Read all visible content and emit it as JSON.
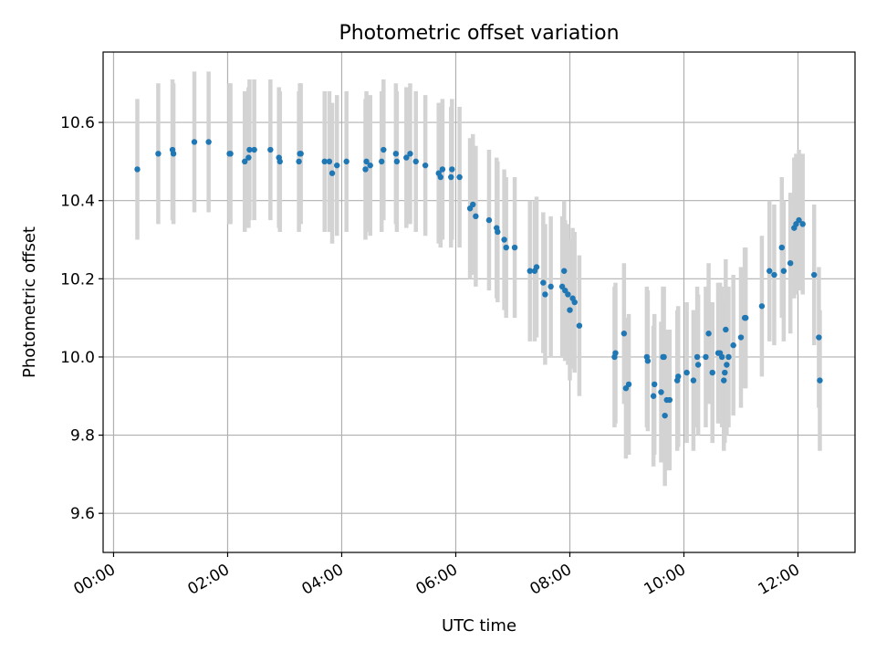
{
  "chart_data": {
    "type": "scatter",
    "title": "Photometric offset variation",
    "xlabel": "UTC time",
    "ylabel": "Photometric offset",
    "x_unit": "UTC hours",
    "xlim": [
      "-00:11",
      "13:00"
    ],
    "ylim": [
      9.5,
      10.78
    ],
    "xticks": [
      "00:00",
      "02:00",
      "04:00",
      "06:00",
      "08:00",
      "10:00",
      "12:00"
    ],
    "yticks": [
      "9.6",
      "9.8",
      "10.0",
      "10.2",
      "10.4",
      "10.6"
    ],
    "grid": true,
    "marker_color": "#1f77b4",
    "errorbar_color": "#d3d3d3",
    "error_half_width": 0.18,
    "points": [
      [
        "00:25",
        10.48
      ],
      [
        "00:47",
        10.52
      ],
      [
        "01:02",
        10.53
      ],
      [
        "01:03",
        10.52
      ],
      [
        "01:25",
        10.55
      ],
      [
        "01:40",
        10.55
      ],
      [
        "02:02",
        10.52
      ],
      [
        "02:03",
        10.52
      ],
      [
        "02:18",
        10.5
      ],
      [
        "02:22",
        10.51
      ],
      [
        "02:23",
        10.53
      ],
      [
        "02:28",
        10.53
      ],
      [
        "02:45",
        10.53
      ],
      [
        "02:54",
        10.51
      ],
      [
        "02:55",
        10.5
      ],
      [
        "03:15",
        10.5
      ],
      [
        "03:16",
        10.52
      ],
      [
        "03:17",
        10.52
      ],
      [
        "03:42",
        10.5
      ],
      [
        "03:47",
        10.5
      ],
      [
        "03:50",
        10.47
      ],
      [
        "03:55",
        10.49
      ],
      [
        "04:05",
        10.5
      ],
      [
        "04:25",
        10.48
      ],
      [
        "04:26",
        10.5
      ],
      [
        "04:30",
        10.49
      ],
      [
        "04:42",
        10.5
      ],
      [
        "04:44",
        10.53
      ],
      [
        "04:57",
        10.52
      ],
      [
        "04:58",
        10.5
      ],
      [
        "05:08",
        10.51
      ],
      [
        "05:12",
        10.52
      ],
      [
        "05:18",
        10.5
      ],
      [
        "05:28",
        10.49
      ],
      [
        "05:42",
        10.47
      ],
      [
        "05:44",
        10.46
      ],
      [
        "05:46",
        10.48
      ],
      [
        "05:55",
        10.46
      ],
      [
        "05:56",
        10.48
      ],
      [
        "06:04",
        10.46
      ],
      [
        "06:15",
        10.38
      ],
      [
        "06:18",
        10.39
      ],
      [
        "06:21",
        10.36
      ],
      [
        "06:35",
        10.35
      ],
      [
        "06:43",
        10.33
      ],
      [
        "06:44",
        10.32
      ],
      [
        "06:51",
        10.3
      ],
      [
        "06:53",
        10.28
      ],
      [
        "07:02",
        10.28
      ],
      [
        "07:18",
        10.22
      ],
      [
        "07:23",
        10.22
      ],
      [
        "07:25",
        10.23
      ],
      [
        "07:32",
        10.19
      ],
      [
        "07:34",
        10.16
      ],
      [
        "07:40",
        10.18
      ],
      [
        "07:52",
        10.18
      ],
      [
        "07:54",
        10.22
      ],
      [
        "07:55",
        10.17
      ],
      [
        "07:58",
        10.16
      ],
      [
        "08:00",
        10.12
      ],
      [
        "08:03",
        10.15
      ],
      [
        "08:05",
        10.14
      ],
      [
        "08:10",
        10.08
      ],
      [
        "08:47",
        10.0
      ],
      [
        "08:48",
        10.01
      ],
      [
        "08:57",
        10.06
      ],
      [
        "08:59",
        9.92
      ],
      [
        "09:02",
        9.93
      ],
      [
        "09:21",
        10.0
      ],
      [
        "09:22",
        9.99
      ],
      [
        "09:28",
        9.9
      ],
      [
        "09:29",
        9.93
      ],
      [
        "09:36",
        9.91
      ],
      [
        "09:38",
        10.0
      ],
      [
        "09:39",
        10.0
      ],
      [
        "09:40",
        9.85
      ],
      [
        "09:42",
        9.89
      ],
      [
        "09:45",
        9.89
      ],
      [
        "09:53",
        9.94
      ],
      [
        "09:54",
        9.95
      ],
      [
        "10:03",
        9.96
      ],
      [
        "10:10",
        9.94
      ],
      [
        "10:14",
        10.0
      ],
      [
        "10:15",
        9.98
      ],
      [
        "10:23",
        10.0
      ],
      [
        "10:26",
        10.06
      ],
      [
        "10:30",
        9.96
      ],
      [
        "10:36",
        10.01
      ],
      [
        "10:38",
        10.01
      ],
      [
        "10:40",
        10.0
      ],
      [
        "10:42",
        9.94
      ],
      [
        "10:43",
        9.96
      ],
      [
        "10:44",
        10.07
      ],
      [
        "10:45",
        9.98
      ],
      [
        "10:47",
        10.0
      ],
      [
        "10:52",
        10.03
      ],
      [
        "11:00",
        10.05
      ],
      [
        "11:04",
        10.1
      ],
      [
        "11:05",
        10.1
      ],
      [
        "11:22",
        10.13
      ],
      [
        "11:30",
        10.22
      ],
      [
        "11:35",
        10.21
      ],
      [
        "11:43",
        10.28
      ],
      [
        "11:45",
        10.22
      ],
      [
        "11:52",
        10.24
      ],
      [
        "11:56",
        10.33
      ],
      [
        "11:58",
        10.34
      ],
      [
        "12:01",
        10.35
      ],
      [
        "12:05",
        10.34
      ],
      [
        "12:17",
        10.21
      ],
      [
        "12:22",
        10.05
      ],
      [
        "12:23",
        9.94
      ]
    ]
  }
}
